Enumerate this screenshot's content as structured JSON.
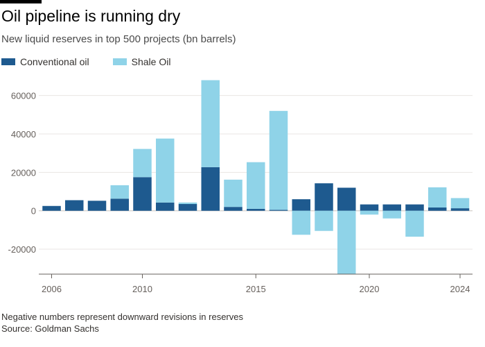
{
  "title": "Oil pipeline is running dry",
  "subtitle": "New liquid reserves in top 500 projects (bn barrels)",
  "legend": [
    {
      "label": "Conventional oil",
      "color": "#1e5a8f"
    },
    {
      "label": "Shale Oil",
      "color": "#8fd3e8"
    }
  ],
  "footer": {
    "note": "Negative numbers represent downward revisions in reserves",
    "source": "Source: Goldman Sachs"
  },
  "chart_data": {
    "type": "bar",
    "stacked": true,
    "title": "Oil pipeline is running dry",
    "subtitle": "New liquid reserves in top 500 projects (bn barrels)",
    "xlabel": "",
    "ylabel": "",
    "ylim": [
      -33000,
      70000
    ],
    "yticks": [
      -20000,
      0,
      20000,
      40000,
      60000
    ],
    "ytick_labels": [
      "-20000",
      "0",
      "20000",
      "40000",
      "60000"
    ],
    "xticks": [
      2006,
      2010,
      2015,
      2020,
      2024
    ],
    "xtick_labels": [
      "2006",
      "2010",
      "2015",
      "2020",
      "2024"
    ],
    "grid": true,
    "legend_position": "top-left",
    "categories": [
      2006,
      2007,
      2008,
      2009,
      2010,
      2011,
      2012,
      2013,
      2014,
      2015,
      2016,
      2017,
      2018,
      2019,
      2020,
      2021,
      2022,
      2023,
      2024
    ],
    "series": [
      {
        "name": "Conventional oil",
        "color": "#1e5a8f",
        "values": [
          2500,
          5500,
          5200,
          6300,
          17500,
          4300,
          3500,
          22700,
          2000,
          1000,
          500,
          6000,
          14300,
          12000,
          3300,
          3300,
          3300,
          1700,
          1300
        ]
      },
      {
        "name": "Shale Oil",
        "color": "#8fd3e8",
        "values": [
          0,
          0,
          0,
          7000,
          14700,
          33300,
          800,
          45300,
          14200,
          24300,
          51500,
          -12500,
          -10500,
          -33000,
          -2000,
          -4000,
          -13500,
          10500,
          5300
        ]
      }
    ]
  }
}
